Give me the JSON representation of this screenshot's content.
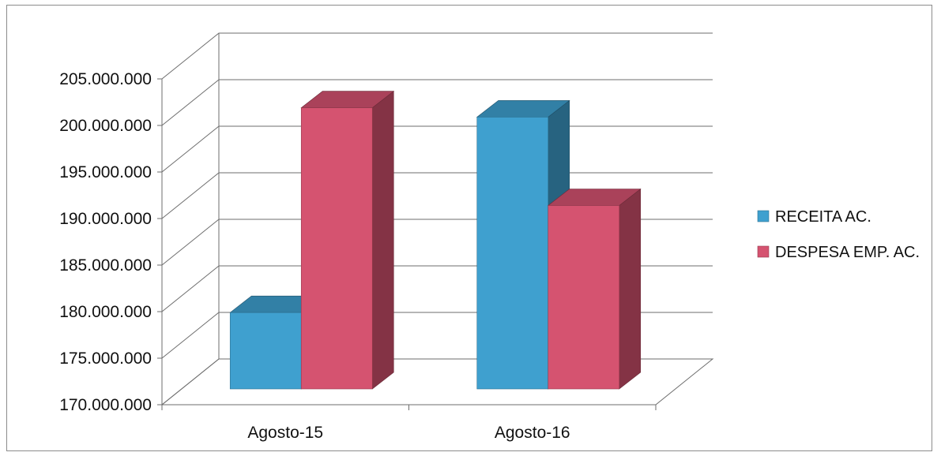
{
  "chart_data": {
    "type": "bar",
    "style": "3d-clustered-column",
    "categories": [
      "Agosto-15",
      "Agosto-16"
    ],
    "series": [
      {
        "name": "RECEITA  AC.",
        "values": [
          181000000,
          202000000
        ],
        "color": "#3fa0cf"
      },
      {
        "name": "DESPESA EMP. AC.",
        "values": [
          203000000,
          192500000
        ],
        "color": "#d55370"
      }
    ],
    "ylim": [
      170000000,
      205000000
    ],
    "yticks": [
      170000000,
      175000000,
      180000000,
      185000000,
      190000000,
      195000000,
      200000000,
      205000000
    ],
    "ytick_labels": [
      "170.000.000",
      "175.000.000",
      "180.000.000",
      "185.000.000",
      "190.000.000",
      "195.000.000",
      "200.000.000",
      "205.000.000"
    ],
    "title": "",
    "xlabel": "",
    "ylabel": "",
    "grid": true,
    "legend_position": "right"
  }
}
